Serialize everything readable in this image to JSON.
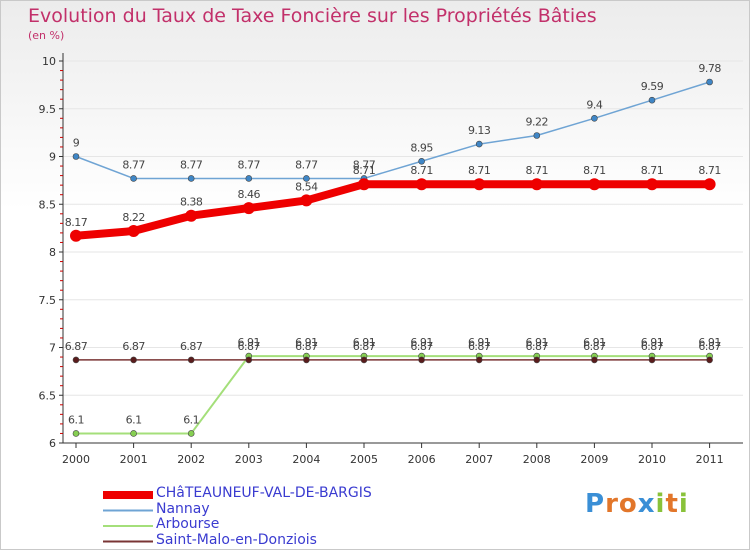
{
  "title": "Evolution du Taux de Taxe Foncière sur les Propriétés Bâties",
  "unit": "(en %)",
  "logo": "Proxiti",
  "chart_data": {
    "type": "line",
    "x": [
      "2000",
      "2001",
      "2002",
      "2003",
      "2004",
      "2005",
      "2006",
      "2007",
      "2008",
      "2009",
      "2010",
      "2011"
    ],
    "ylim": [
      6,
      10
    ],
    "yticks": [
      6,
      6.5,
      7,
      7.5,
      8,
      8.5,
      9,
      9.5,
      10
    ],
    "series": [
      {
        "name": "Nannay",
        "color": "#6fa4d4",
        "marker": "#3f86c6",
        "width": 1.5,
        "values": [
          9,
          8.77,
          8.77,
          8.77,
          8.77,
          8.77,
          8.95,
          9.13,
          9.22,
          9.4,
          9.59,
          9.78
        ],
        "labels": [
          "9",
          "8.77",
          "8.77",
          "8.77",
          "8.77",
          "8.77",
          "8.95",
          "9.13",
          "9.22",
          "9.4",
          "9.59",
          "9.78"
        ]
      },
      {
        "name": "Arbourse",
        "color": "#a4df7a",
        "marker": "#86cf52",
        "width": 2,
        "values": [
          6.1,
          6.1,
          6.1,
          6.91,
          6.91,
          6.91,
          6.91,
          6.91,
          6.91,
          6.91,
          6.91,
          6.91
        ],
        "labels": [
          "6.1",
          "6.1",
          "6.1",
          "6.91",
          "6.91",
          "6.91",
          "6.91",
          "6.91",
          "6.91",
          "6.91",
          "6.91",
          "6.91"
        ]
      },
      {
        "name": "Saint-Malo-en-Donziois",
        "color": "#7a3535",
        "marker": "#5a1c1c",
        "width": 1.5,
        "values": [
          6.87,
          6.87,
          6.87,
          6.87,
          6.87,
          6.87,
          6.87,
          6.87,
          6.87,
          6.87,
          6.87,
          6.87
        ],
        "labels": [
          "6.87",
          "6.87",
          "6.87",
          "6.87",
          "6.87",
          "6.87",
          "6.87",
          "6.87",
          "6.87",
          "6.87",
          "6.87",
          "6.87"
        ]
      },
      {
        "name": "CHâTEAUNEUF-VAL-DE-BARGIS",
        "color": "#ee0000",
        "marker": "#ee0000",
        "width": 8,
        "values": [
          8.17,
          8.22,
          8.38,
          8.46,
          8.54,
          8.71,
          8.71,
          8.71,
          8.71,
          8.71,
          8.71,
          8.71
        ],
        "labels": [
          "8.17",
          "8.22",
          "8.38",
          "8.46",
          "8.54",
          "8.71",
          "8.71",
          "8.71",
          "8.71",
          "8.71",
          "8.71",
          "8.71"
        ]
      }
    ],
    "legend": [
      {
        "name": "CHâTEAUNEUF-VAL-DE-BARGIS",
        "color": "#ee0000",
        "thick": true
      },
      {
        "name": "Nannay",
        "color": "#6fa4d4",
        "thick": false
      },
      {
        "name": "Arbourse",
        "color": "#a4df7a",
        "thick": false
      },
      {
        "name": "Saint-Malo-en-Donziois",
        "color": "#7a3535",
        "thick": false
      }
    ]
  }
}
